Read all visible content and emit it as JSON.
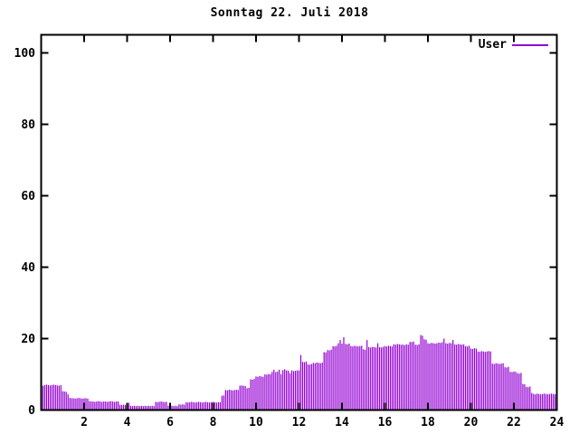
{
  "title": "Sonntag 22. Juli 2018",
  "legend": {
    "label": "User",
    "color": "#9400d3",
    "position": "top-right"
  },
  "chart_data": {
    "type": "bar",
    "title": "Sonntag 22. Juli 2018",
    "xlabel": "",
    "ylabel": "",
    "x_unit": "hour of day",
    "interval_minutes": 5,
    "xlim": [
      0,
      24
    ],
    "ylim": [
      0,
      105
    ],
    "x_ticks": [
      2,
      4,
      6,
      8,
      10,
      12,
      14,
      16,
      18,
      20,
      22,
      24
    ],
    "y_ticks": [
      0,
      20,
      40,
      60,
      80,
      100
    ],
    "grid": false,
    "legend_position": "top-right",
    "bar_color": "#9400d3",
    "axis_color": "#000000",
    "background_color": "#ffffff",
    "series": [
      {
        "name": "User",
        "color": "#9400d3",
        "values": [
          0,
          6.8,
          7.0,
          7.1,
          7.0,
          6.9,
          7.0,
          7.1,
          7.0,
          6.9,
          6.8,
          7.0,
          5.3,
          5.2,
          5.1,
          4.4,
          3.4,
          3.3,
          3.3,
          3.2,
          3.3,
          3.4,
          3.3,
          3.2,
          3.3,
          3.3,
          3.2,
          2.5,
          2.4,
          2.4,
          2.3,
          2.4,
          2.5,
          2.4,
          2.3,
          2.4,
          2.4,
          2.3,
          2.4,
          2.5,
          2.4,
          2.3,
          2.4,
          2.4,
          1.5,
          1.4,
          1.5,
          1.4,
          2.0,
          2.0,
          1.2,
          1.1,
          1.2,
          1.1,
          1.2,
          1.1,
          1.2,
          1.1,
          1.2,
          1.1,
          1.2,
          1.1,
          1.2,
          1.1,
          2.3,
          2.2,
          2.3,
          2.4,
          2.3,
          2.2,
          2.3,
          1.2,
          1.1,
          1.2,
          1.1,
          1.2,
          1.1,
          1.6,
          1.5,
          1.6,
          1.5,
          2.2,
          2.1,
          2.2,
          2.3,
          2.2,
          2.1,
          2.2,
          2.3,
          2.2,
          2.1,
          2.2,
          2.3,
          2.2,
          2.1,
          2.2,
          2.3,
          2.2,
          2.1,
          2.2,
          2.2,
          4.0,
          4.1,
          5.6,
          5.5,
          5.7,
          5.6,
          5.5,
          5.6,
          5.7,
          5.6,
          6.8,
          6.9,
          6.8,
          6.7,
          6.1,
          6.2,
          8.6,
          8.5,
          8.7,
          9.4,
          9.3,
          9.5,
          9.4,
          9.3,
          10.0,
          9.9,
          10.1,
          10.0,
          10.7,
          11.3,
          10.6,
          10.8,
          11.3,
          10.0,
          11.2,
          11.4,
          11.1,
          11.0,
          10.3,
          11.1,
          10.9,
          11.0,
          11.1,
          11.1,
          15.4,
          13.5,
          13.4,
          13.6,
          12.8,
          12.7,
          12.9,
          13.2,
          13.1,
          13.3,
          13.2,
          13.1,
          13.3,
          16.2,
          16.1,
          16.8,
          16.7,
          16.9,
          17.9,
          17.8,
          18.0,
          18.7,
          19.6,
          18.6,
          20.4,
          18.5,
          18.4,
          18.6,
          17.9,
          17.8,
          18.0,
          17.9,
          17.8,
          17.9,
          18.0,
          17.0,
          16.9,
          19.6,
          17.6,
          17.5,
          17.7,
          17.6,
          17.5,
          18.7,
          17.6,
          17.5,
          17.7,
          17.9,
          17.8,
          18.0,
          17.9,
          17.8,
          18.4,
          18.3,
          18.5,
          18.4,
          18.3,
          18.3,
          18.2,
          18.4,
          18.3,
          19.1,
          19.0,
          19.2,
          18.3,
          18.2,
          18.4,
          21.0,
          20.8,
          19.8,
          19.7,
          18.7,
          18.6,
          18.8,
          18.7,
          18.6,
          18.7,
          18.9,
          18.8,
          19.0,
          20.0,
          18.7,
          18.6,
          18.8,
          18.7,
          19.6,
          18.4,
          18.3,
          18.5,
          18.4,
          18.3,
          18.4,
          17.9,
          17.8,
          18.0,
          17.2,
          17.1,
          17.3,
          17.2,
          16.4,
          16.3,
          16.5,
          16.4,
          16.3,
          16.4,
          16.5,
          16.4,
          13.0,
          12.9,
          13.1,
          13.0,
          12.9,
          13.0,
          13.1,
          12.0,
          11.9,
          12.1,
          10.7,
          10.6,
          10.8,
          10.7,
          10.3,
          10.2,
          10.4,
          7.3,
          7.2,
          6.5,
          6.4,
          6.6,
          4.8,
          4.5,
          4.4,
          4.6,
          4.5,
          4.4,
          4.5,
          4.6,
          4.5,
          4.4,
          4.5,
          4.6,
          4.5,
          4.4
        ]
      }
    ]
  }
}
